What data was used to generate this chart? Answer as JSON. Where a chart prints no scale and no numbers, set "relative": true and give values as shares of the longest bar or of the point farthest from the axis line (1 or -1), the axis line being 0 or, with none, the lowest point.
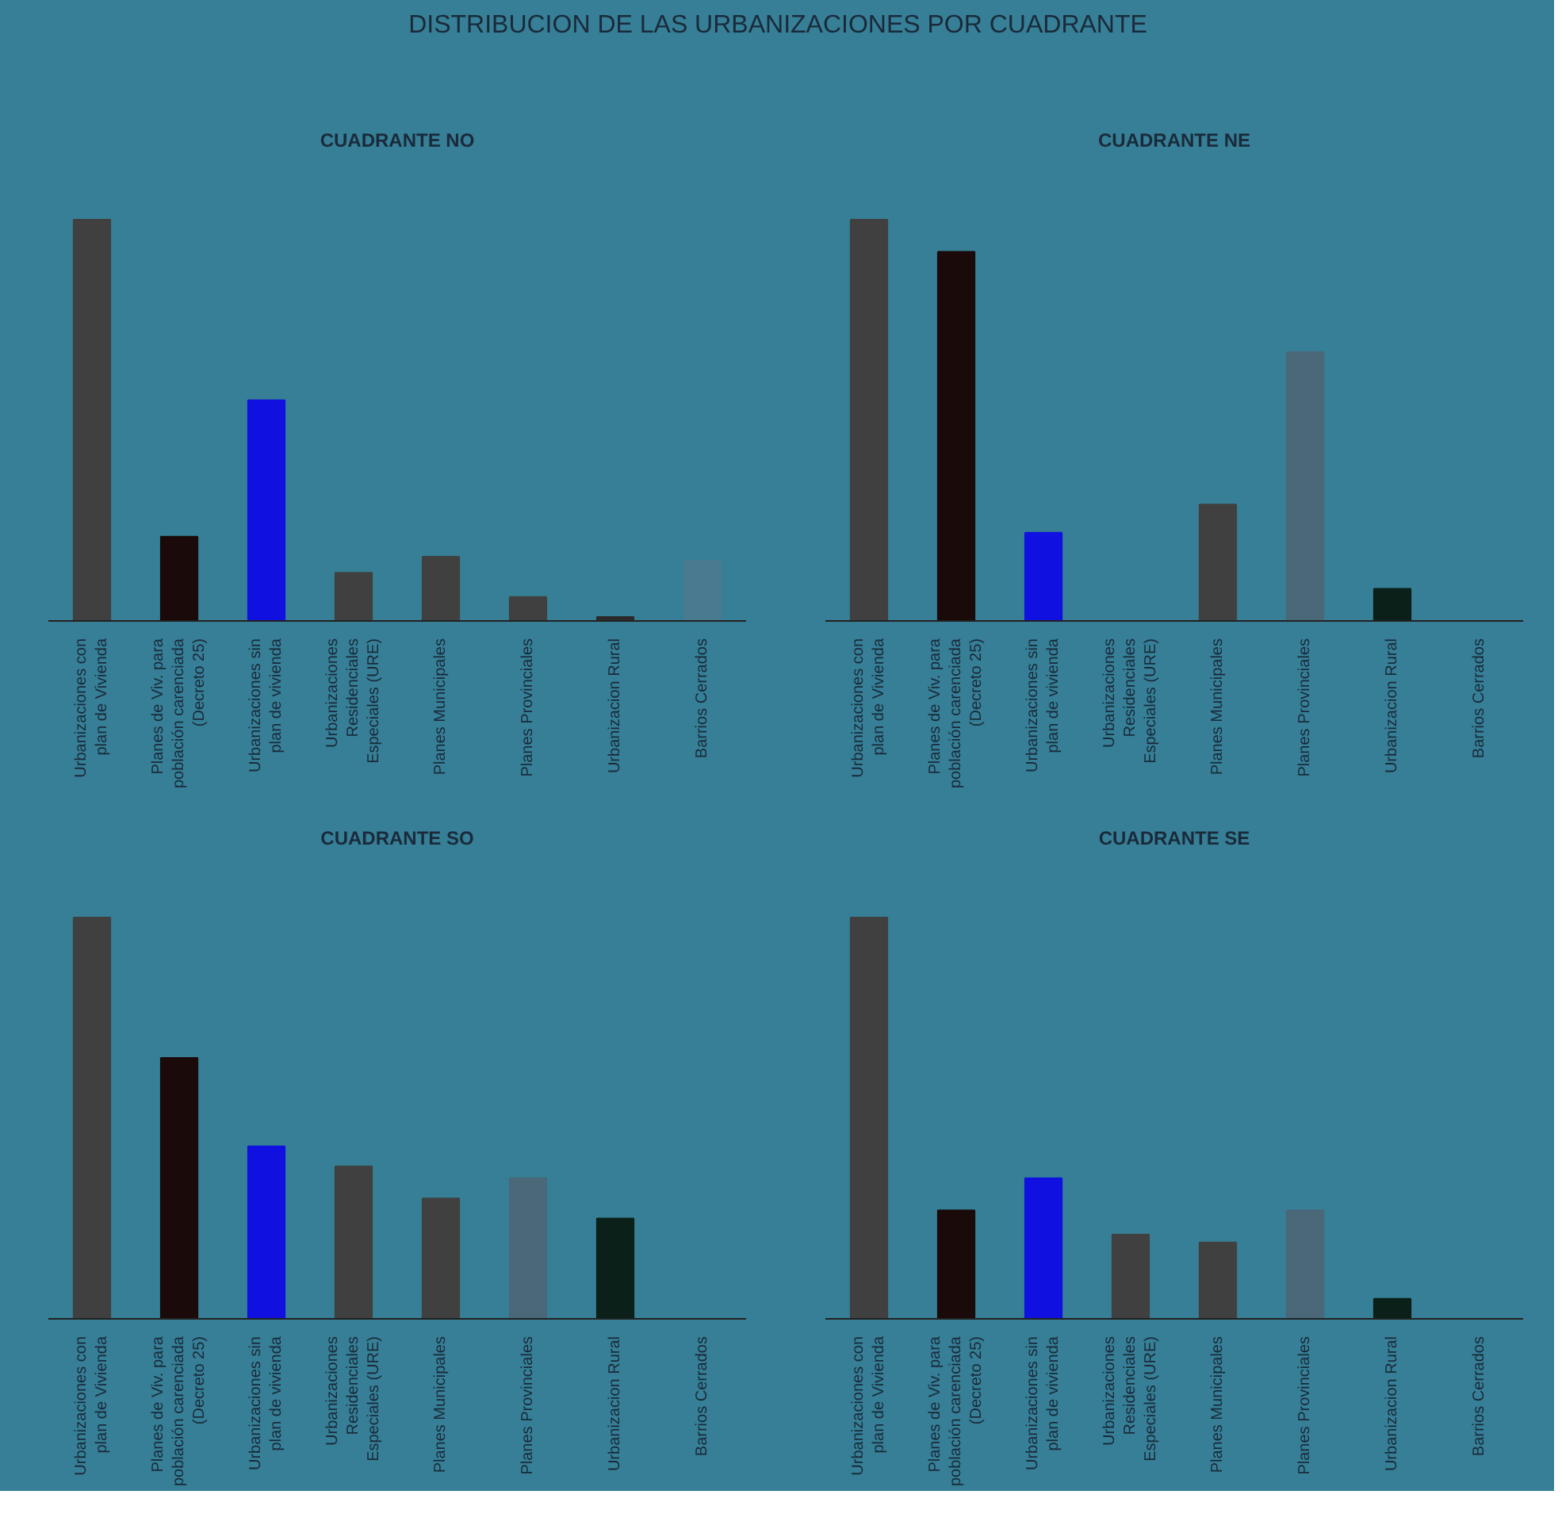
{
  "chart_data": [
    {
      "type": "other",
      "title": "DISTRIBUCION DE LAS URBANIZACIONES POR CUADRANTE"
    },
    {
      "type": "bar",
      "title": "CUADRANTE NO",
      "relative": true,
      "categories": [
        "Urbanizaciones con plan de Vivienda",
        "Planes de Viv. para población carenciada (Decreto 25)",
        "Urbanizaciones sin plan de vivienda",
        "Urbanizaciones Residenciales Especiales (URE)",
        "Planes Municipales",
        "Planes Provinciales",
        "Urbanizacion Rural",
        "Barrios Cerrados"
      ],
      "values": [
        1,
        0.21,
        0.55,
        0.12,
        0.16,
        0.06,
        0.01,
        0.15
      ],
      "colors": [
        "#404040",
        "#1a0a0a",
        "#1010e0",
        "#404040",
        "#404040",
        "#404040",
        "#2a2a2a",
        "#4a7a90"
      ],
      "grid": false,
      "legend": false
    },
    {
      "type": "bar",
      "title": "CUADRANTE NE",
      "relative": true,
      "categories": [
        "Urbanizaciones con plan de Vivienda",
        "Planes de Viv. para población carenciada (Decreto 25)",
        "Urbanizaciones sin plan de vivienda",
        "Urbanizaciones Residenciales Especiales (URE)",
        "Planes Municipales",
        "Planes Provinciales",
        "Urbanizacion Rural",
        "Barrios Cerrados"
      ],
      "values": [
        1,
        0.92,
        0.22,
        0,
        0.29,
        0.67,
        0.08,
        0
      ],
      "colors": [
        "#404040",
        "#1a0a0a",
        "#1010e0",
        "#404040",
        "#404040",
        "#4a6878",
        "#0a2018",
        "#404040"
      ],
      "grid": false,
      "legend": false
    },
    {
      "type": "bar",
      "title": "CUADRANTE SO",
      "relative": true,
      "categories": [
        "Urbanizaciones con plan de Vivienda",
        "Planes de Viv. para población carenciada (Decreto 25)",
        "Urbanizaciones sin plan de vivienda",
        "Urbanizaciones Residenciales Especiales (URE)",
        "Planes Municipales",
        "Planes Provinciales",
        "Urbanizacion Rural",
        "Barrios Cerrados"
      ],
      "values": [
        1,
        0.65,
        0.43,
        0.38,
        0.3,
        0.35,
        0.25,
        0
      ],
      "colors": [
        "#404040",
        "#1a0a0a",
        "#1010e0",
        "#404040",
        "#404040",
        "#4a6878",
        "#0a2018",
        "#404040"
      ],
      "grid": false,
      "legend": false
    },
    {
      "type": "bar",
      "title": "CUADRANTE SE",
      "relative": true,
      "categories": [
        "Urbanizaciones con plan de Vivienda",
        "Planes de Viv. para población carenciada (Decreto 25)",
        "Urbanizaciones sin plan de vivienda",
        "Urbanizaciones Residenciales Especiales (URE)",
        "Planes Municipales",
        "Planes Provinciales",
        "Urbanizacion Rural",
        "Barrios Cerrados"
      ],
      "values": [
        1,
        0.27,
        0.35,
        0.21,
        0.19,
        0.27,
        0.05,
        0
      ],
      "colors": [
        "#404040",
        "#1a0a0a",
        "#1010e0",
        "#404040",
        "#404040",
        "#4a6878",
        "#0a2018",
        "#404040"
      ],
      "grid": false,
      "legend": false
    }
  ]
}
